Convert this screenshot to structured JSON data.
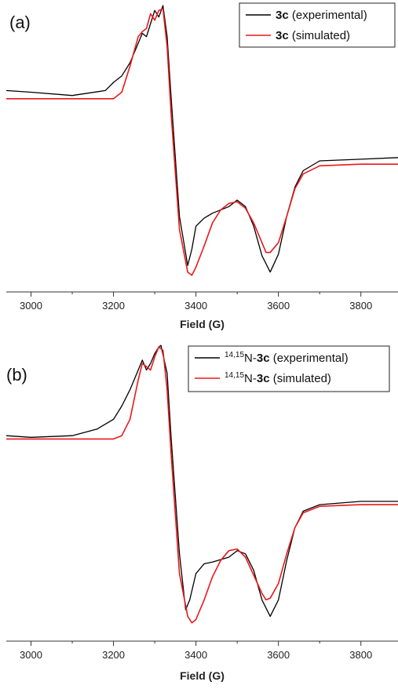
{
  "chart_data": [
    {
      "type": "line",
      "panel_label": "(a)",
      "xlabel": "Field (G)",
      "xlim": [
        2940,
        3890
      ],
      "x_ticks": [
        3000,
        3200,
        3400,
        3600,
        3800
      ],
      "legend_position": "top-right",
      "series": [
        {
          "name": "3c (experimental)",
          "legend_bold": "3c",
          "legend_rest": " (experimental)",
          "color": "#000000",
          "x": [
            2940,
            3000,
            3100,
            3180,
            3200,
            3220,
            3240,
            3260,
            3270,
            3280,
            3290,
            3300,
            3310,
            3320,
            3330,
            3340,
            3360,
            3380,
            3390,
            3400,
            3420,
            3440,
            3480,
            3500,
            3520,
            3540,
            3560,
            3580,
            3600,
            3620,
            3640,
            3660,
            3700,
            3800,
            3890
          ],
          "y": [
            0.55,
            0.54,
            0.52,
            0.55,
            0.6,
            0.64,
            0.72,
            0.84,
            0.9,
            0.88,
            0.96,
            1.04,
            1.0,
            1.07,
            0.88,
            0.5,
            -0.22,
            -0.52,
            -0.42,
            -0.28,
            -0.23,
            -0.2,
            -0.16,
            -0.12,
            -0.16,
            -0.28,
            -0.46,
            -0.56,
            -0.45,
            -0.22,
            -0.04,
            0.06,
            0.12,
            0.13,
            0.14
          ]
        },
        {
          "name": "3c (simulated)",
          "legend_bold": "3c",
          "legend_rest": " (simulated)",
          "color": "#e8191c",
          "x": [
            2940,
            3150,
            3200,
            3220,
            3240,
            3260,
            3270,
            3280,
            3290,
            3300,
            3310,
            3320,
            3330,
            3340,
            3360,
            3380,
            3390,
            3400,
            3420,
            3440,
            3460,
            3480,
            3500,
            3520,
            3540,
            3560,
            3570,
            3580,
            3600,
            3620,
            3640,
            3660,
            3700,
            3800,
            3890
          ],
          "y": [
            0.5,
            0.5,
            0.5,
            0.54,
            0.7,
            0.88,
            0.91,
            0.93,
            1.02,
            0.98,
            1.04,
            1.05,
            0.82,
            0.4,
            -0.3,
            -0.56,
            -0.58,
            -0.53,
            -0.4,
            -0.26,
            -0.18,
            -0.14,
            -0.13,
            -0.17,
            -0.26,
            -0.38,
            -0.44,
            -0.44,
            -0.38,
            -0.22,
            -0.05,
            0.04,
            0.09,
            0.1,
            0.1
          ]
        }
      ]
    },
    {
      "type": "line",
      "panel_label": "(b)",
      "xlabel": "Field (G)",
      "xlim": [
        2940,
        3890
      ],
      "x_ticks": [
        3000,
        3200,
        3400,
        3600,
        3800
      ],
      "legend_position": "top-right",
      "series": [
        {
          "name": "14,15N-3c (experimental)",
          "legend_sup": "14,15",
          "legend_mid": "N-",
          "legend_bold": "3c",
          "legend_rest": " (experimental)",
          "color": "#000000",
          "x": [
            2940,
            3000,
            3100,
            3160,
            3200,
            3220,
            3240,
            3260,
            3270,
            3280,
            3290,
            3300,
            3310,
            3315,
            3330,
            3340,
            3360,
            3375,
            3385,
            3400,
            3420,
            3440,
            3480,
            3500,
            3520,
            3540,
            3560,
            3580,
            3600,
            3620,
            3640,
            3660,
            3700,
            3800,
            3890
          ],
          "y": [
            0.52,
            0.51,
            0.52,
            0.56,
            0.62,
            0.7,
            0.8,
            0.92,
            0.98,
            0.92,
            0.96,
            1.02,
            1.06,
            1.07,
            0.9,
            0.5,
            -0.2,
            -0.54,
            -0.48,
            -0.32,
            -0.26,
            -0.25,
            -0.22,
            -0.18,
            -0.2,
            -0.3,
            -0.48,
            -0.58,
            -0.48,
            -0.24,
            -0.04,
            0.06,
            0.1,
            0.12,
            0.12
          ]
        },
        {
          "name": "14,15N-3c (simulated)",
          "legend_sup": "14,15",
          "legend_mid": "N-",
          "legend_bold": "3c",
          "legend_rest": " (simulated)",
          "color": "#e8191c",
          "x": [
            2940,
            3200,
            3220,
            3240,
            3260,
            3270,
            3280,
            3290,
            3300,
            3310,
            3320,
            3330,
            3340,
            3360,
            3380,
            3390,
            3400,
            3420,
            3440,
            3460,
            3480,
            3500,
            3520,
            3540,
            3560,
            3570,
            3580,
            3600,
            3620,
            3640,
            3660,
            3700,
            3800,
            3890
          ],
          "y": [
            0.5,
            0.5,
            0.52,
            0.62,
            0.86,
            0.96,
            0.94,
            0.92,
            1.0,
            1.06,
            1.04,
            0.8,
            0.4,
            -0.32,
            -0.58,
            -0.62,
            -0.6,
            -0.48,
            -0.34,
            -0.24,
            -0.18,
            -0.17,
            -0.22,
            -0.33,
            -0.44,
            -0.48,
            -0.47,
            -0.38,
            -0.2,
            -0.04,
            0.05,
            0.09,
            0.1,
            0.1
          ]
        }
      ]
    }
  ]
}
